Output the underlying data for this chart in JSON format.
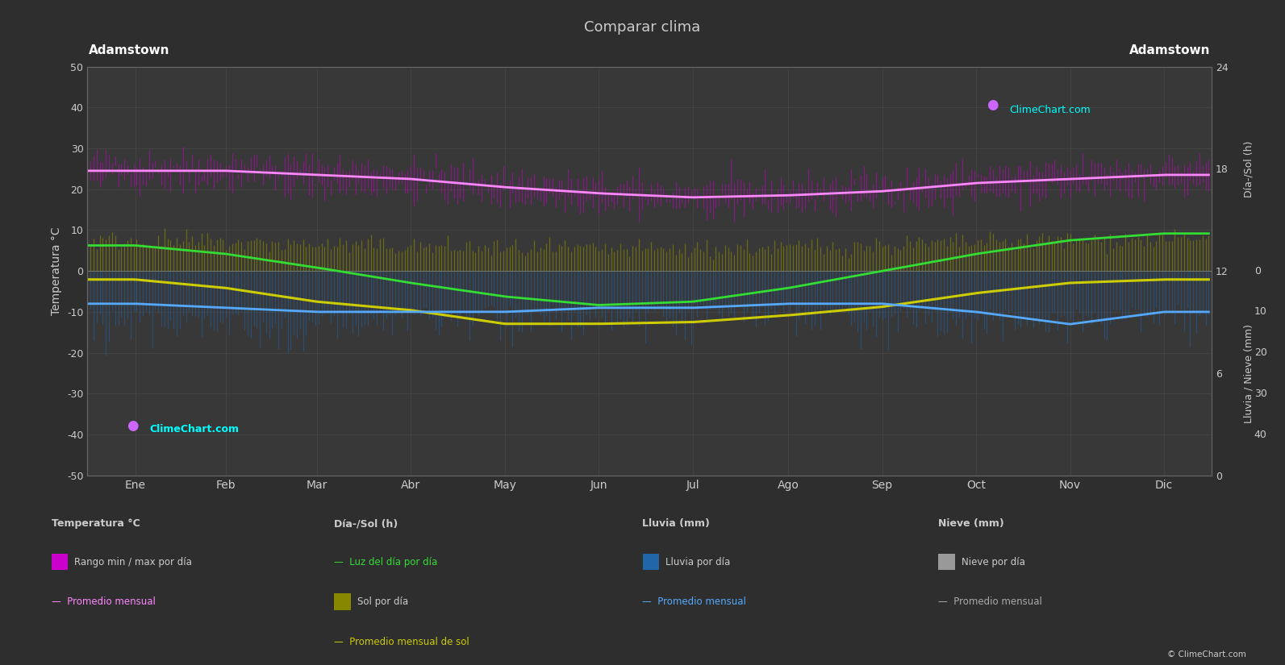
{
  "title": "Comparar clima",
  "location_left": "Adamstown",
  "location_right": "Adamstown",
  "months": [
    "Ene",
    "Feb",
    "Mar",
    "Abr",
    "May",
    "Jun",
    "Jul",
    "Ago",
    "Sep",
    "Oct",
    "Nov",
    "Dic"
  ],
  "temp_ylim": [
    -50,
    50
  ],
  "background_color": "#2e2e2e",
  "plot_bg_color": "#383838",
  "grid_color": "#4a4a4a",
  "text_color": "#cccccc",
  "temp_max_daily": [
    27,
    27,
    26,
    25,
    23,
    21,
    20,
    21,
    22,
    24,
    25,
    26
  ],
  "temp_min_daily": [
    22,
    22,
    21,
    20,
    18,
    17,
    16,
    16,
    17,
    19,
    20,
    21
  ],
  "temp_avg_monthly": [
    24.5,
    24.5,
    23.5,
    22.5,
    20.5,
    19,
    18,
    18.5,
    19.5,
    21.5,
    22.5,
    23.5
  ],
  "daylight_hours": [
    13.5,
    13.0,
    12.2,
    11.3,
    10.5,
    10.0,
    10.2,
    11.0,
    12.0,
    13.0,
    13.8,
    14.2
  ],
  "sunshine_hours_daily": [
    7.5,
    7.0,
    6.5,
    6.0,
    5.5,
    5.2,
    5.3,
    5.8,
    6.3,
    7.0,
    7.5,
    7.8
  ],
  "sunshine_monthly_avg_h": [
    11.5,
    11.0,
    10.2,
    9.7,
    8.9,
    8.9,
    9.0,
    9.4,
    9.9,
    10.7,
    11.3,
    11.5
  ],
  "rain_daily_mm": [
    9,
    10,
    10,
    9,
    8,
    9,
    8,
    8,
    9,
    9,
    9,
    8
  ],
  "rain_line_monthly_mm": [
    8,
    9,
    10,
    10,
    10,
    9,
    9,
    8,
    8,
    10,
    13,
    10
  ],
  "days_per_month": [
    31,
    28,
    31,
    30,
    31,
    30,
    31,
    31,
    30,
    31,
    30,
    31
  ],
  "color_temp_range": "#cc00cc",
  "color_temp_avg": "#ff88ff",
  "color_daylight": "#33dd33",
  "color_sunshine_bar": "#888800",
  "color_sunshine_avg": "#cccc00",
  "color_rain_bar": "#2266aa",
  "color_rain_avg": "#55aaff",
  "color_nieve_bar": "#999999",
  "color_nieve_avg": "#aaaaaa",
  "legend_texts": {
    "temp_section": "Temperatura °C",
    "temp_range": "Rango min / max por día",
    "temp_avg": "Promedio mensual",
    "sol_section": "Día-/Sol (h)",
    "daylight": "Luz del día por día",
    "sunshine": "Sol por día",
    "sunshine_avg": "Promedio mensual de sol",
    "lluvia_section": "Lluvia (mm)",
    "lluvia_day": "Lluvia por día",
    "lluvia_avg": "Promedio mensual",
    "nieve_section": "Nieve (mm)",
    "nieve_day": "Nieve por día",
    "nieve_avg": "Promedio mensual"
  },
  "ylabel_left": "Temperatura °C",
  "ylabel_right_top": "Día-/Sol (h)",
  "ylabel_right_bot": "Lluvia / Nieve (mm)"
}
